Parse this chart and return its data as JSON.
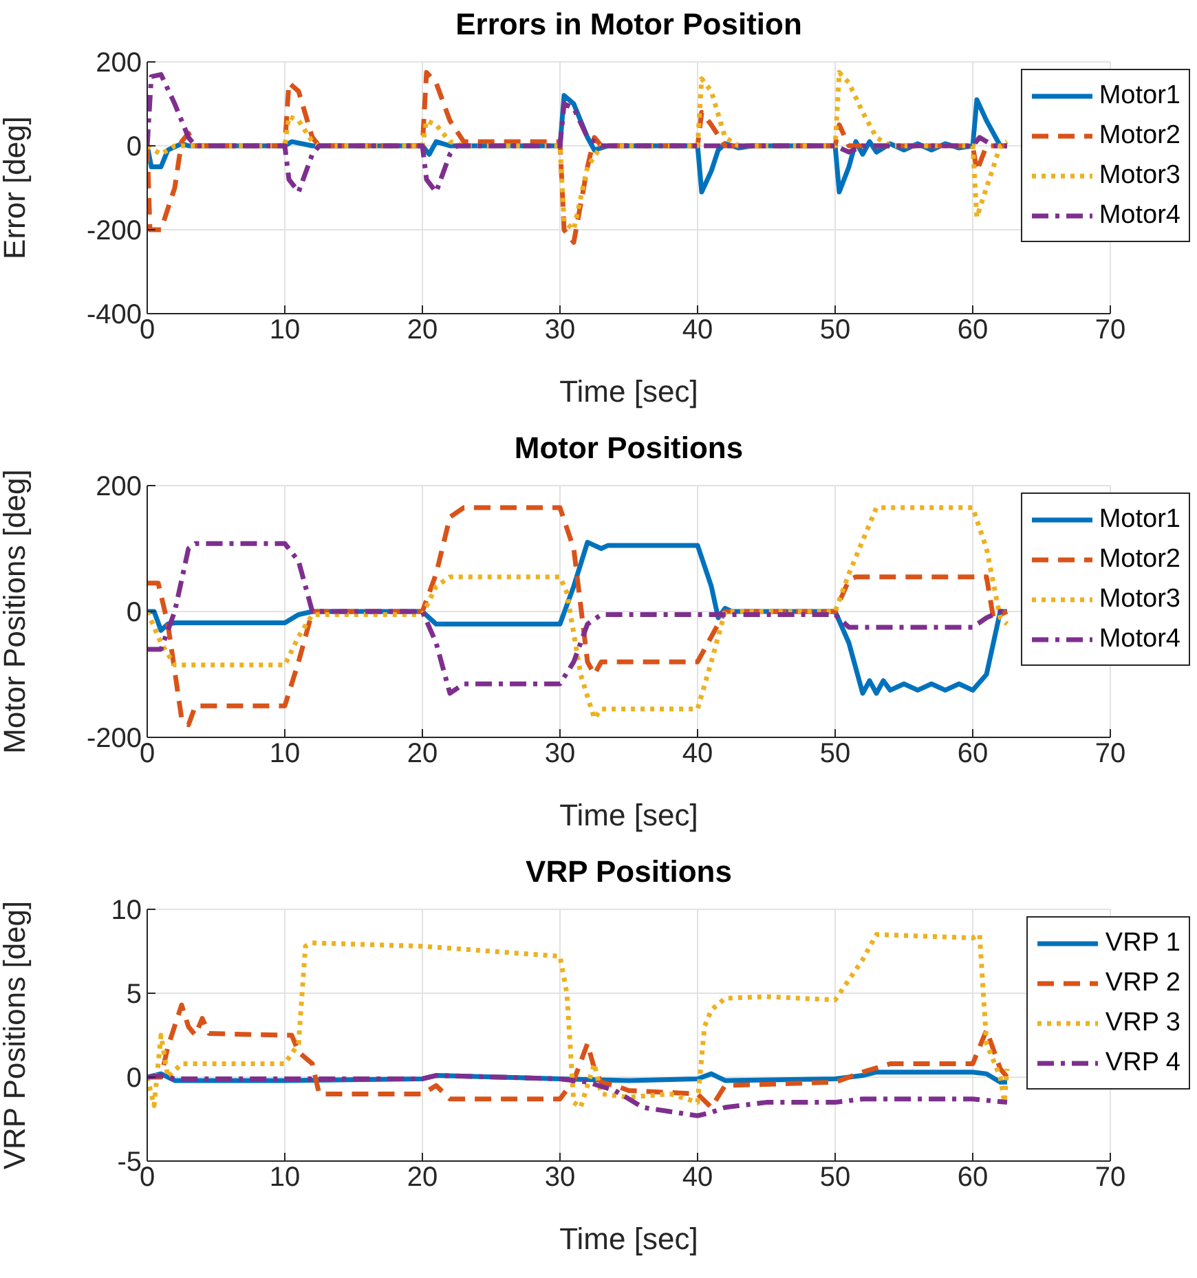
{
  "chart_data": [
    {
      "type": "line",
      "title": "Errors in Motor Position",
      "xlabel": "Time [sec]",
      "ylabel": "Error [deg]",
      "xlim": [
        0,
        70
      ],
      "xticks": [
        0,
        10,
        20,
        30,
        40,
        50,
        60,
        70
      ],
      "ylim": [
        -400,
        200
      ],
      "yticks": [
        -400,
        -200,
        0,
        200
      ],
      "grid": true,
      "legend": "top right",
      "series": [
        {
          "name": "Motor1",
          "color": "#0072bd",
          "line_style": "solid",
          "x": [
            0,
            0.3,
            1,
            1.5,
            2.5,
            3,
            10,
            10.5,
            12,
            20,
            20.5,
            21,
            22,
            30,
            30.3,
            31,
            32,
            32.5,
            33.5,
            40,
            40.3,
            41,
            41.5,
            42,
            43,
            44,
            50,
            50.3,
            51,
            51.5,
            52,
            52.5,
            53,
            54,
            55,
            56,
            57,
            58,
            59,
            60,
            60.3,
            61,
            62,
            62.5
          ],
          "values": [
            0,
            -50,
            -50,
            -10,
            5,
            0,
            0,
            10,
            0,
            0,
            -20,
            10,
            0,
            0,
            120,
            100,
            20,
            -10,
            0,
            0,
            -110,
            -60,
            -10,
            5,
            -5,
            0,
            0,
            -110,
            -50,
            10,
            -20,
            10,
            -15,
            5,
            -10,
            5,
            -10,
            5,
            -5,
            0,
            110,
            60,
            0,
            0
          ]
        },
        {
          "name": "Motor2",
          "color": "#d95319",
          "line_style": "dashed",
          "x": [
            0,
            0.2,
            1,
            2,
            2.5,
            3,
            3.5,
            10,
            10.3,
            11,
            12,
            12.5,
            20,
            20.3,
            21,
            22,
            23,
            24,
            30,
            30.3,
            31,
            32,
            32.5,
            33,
            40,
            40.3,
            41,
            42,
            50,
            50.3,
            51,
            60,
            60.3,
            61,
            62.5
          ],
          "values": [
            0,
            -200,
            -200,
            -100,
            10,
            30,
            0,
            0,
            150,
            130,
            20,
            0,
            0,
            175,
            150,
            60,
            10,
            10,
            10,
            -200,
            -230,
            -50,
            20,
            0,
            0,
            80,
            50,
            0,
            0,
            50,
            0,
            0,
            -60,
            0,
            0
          ]
        },
        {
          "name": "Motor3",
          "color": "#edb120",
          "line_style": "dotted",
          "x": [
            0,
            1,
            2,
            10,
            10.3,
            11,
            12,
            12.5,
            20,
            20.3,
            21,
            22,
            23,
            30,
            30.3,
            31,
            32,
            33,
            40,
            40.3,
            41,
            42,
            43,
            50,
            50.3,
            51,
            52,
            53,
            54,
            60,
            60.3,
            61,
            62,
            62.5
          ],
          "values": [
            0,
            -20,
            0,
            0,
            70,
            60,
            10,
            0,
            0,
            60,
            50,
            10,
            0,
            0,
            -180,
            -200,
            -50,
            0,
            0,
            160,
            130,
            20,
            0,
            0,
            175,
            150,
            80,
            20,
            0,
            0,
            -170,
            -100,
            0,
            10
          ]
        },
        {
          "name": "Motor4",
          "color": "#7e2f8e",
          "line_style": "dashdot",
          "x": [
            0,
            0.3,
            1,
            2,
            3,
            3.5,
            10,
            10.3,
            11,
            12,
            12.5,
            20,
            20.3,
            21,
            22,
            22.5,
            30,
            30.3,
            31,
            32,
            33,
            40,
            50,
            51,
            52,
            60,
            60.5,
            61.5,
            62.5
          ],
          "values": [
            0,
            165,
            170,
            100,
            20,
            0,
            0,
            -80,
            -110,
            -20,
            0,
            0,
            -80,
            -110,
            -20,
            0,
            0,
            100,
            90,
            20,
            0,
            0,
            0,
            -15,
            0,
            0,
            20,
            0,
            0
          ]
        }
      ]
    },
    {
      "type": "line",
      "title": "Motor Positions",
      "xlabel": "Time [sec]",
      "ylabel": "Motor Positions [deg]",
      "xlim": [
        0,
        70
      ],
      "xticks": [
        0,
        10,
        20,
        30,
        40,
        50,
        60,
        70
      ],
      "ylim": [
        -200,
        200
      ],
      "yticks": [
        -200,
        0,
        200
      ],
      "grid": true,
      "legend": "top right",
      "series": [
        {
          "name": "Motor1",
          "color": "#0072bd",
          "line_style": "solid",
          "x": [
            0,
            0.5,
            1,
            1.5,
            2,
            10,
            11,
            12,
            20,
            21,
            22,
            30,
            31,
            32,
            33,
            33.5,
            40,
            41,
            41.5,
            42,
            42.5,
            50,
            51,
            52,
            52.5,
            53,
            53.5,
            54,
            55,
            56,
            57,
            58,
            59,
            60,
            61,
            62,
            62.5
          ],
          "values": [
            0,
            0,
            -30,
            -20,
            -18,
            -18,
            -5,
            0,
            0,
            -20,
            -20,
            -20,
            40,
            110,
            100,
            105,
            105,
            40,
            -10,
            5,
            0,
            0,
            -50,
            -130,
            -110,
            -130,
            -110,
            -125,
            -115,
            -125,
            -115,
            -125,
            -115,
            -125,
            -100,
            0,
            0
          ]
        },
        {
          "name": "Motor2",
          "color": "#d95319",
          "line_style": "dashed",
          "x": [
            0,
            0.8,
            1.5,
            2.5,
            3,
            3.5,
            10,
            11,
            12,
            20,
            21,
            22,
            23,
            30,
            31,
            32,
            32.5,
            33,
            40,
            41,
            42,
            50,
            51,
            51.5,
            60,
            61,
            61.5,
            62.5
          ],
          "values": [
            45,
            45,
            -20,
            -170,
            -180,
            -150,
            -150,
            -80,
            0,
            0,
            60,
            150,
            165,
            165,
            100,
            -80,
            -100,
            -80,
            -80,
            -40,
            0,
            0,
            50,
            55,
            55,
            55,
            -10,
            0
          ]
        },
        {
          "name": "Motor3",
          "color": "#edb120",
          "line_style": "dotted",
          "x": [
            0,
            1,
            2,
            10,
            11,
            12,
            20,
            21,
            22,
            30,
            30.5,
            31.5,
            32.5,
            33,
            40,
            41,
            42,
            50,
            51,
            53,
            60,
            61,
            62,
            62.5
          ],
          "values": [
            0,
            -50,
            -85,
            -85,
            -40,
            -5,
            -5,
            40,
            55,
            55,
            30,
            -100,
            -170,
            -155,
            -155,
            -80,
            0,
            0,
            60,
            165,
            165,
            100,
            -10,
            -20
          ]
        },
        {
          "name": "Motor4",
          "color": "#7e2f8e",
          "line_style": "dashdot",
          "x": [
            0,
            1,
            2,
            3,
            3.5,
            10,
            11,
            12,
            20,
            21,
            22,
            23,
            30,
            31,
            32,
            33,
            40,
            50,
            51,
            60,
            61,
            62,
            62.5
          ],
          "values": [
            -60,
            -60,
            0,
            100,
            108,
            108,
            80,
            0,
            0,
            -50,
            -130,
            -115,
            -115,
            -80,
            -20,
            -5,
            -5,
            -5,
            -25,
            -25,
            -10,
            0,
            0
          ]
        }
      ]
    },
    {
      "type": "line",
      "title": "VRP Positions",
      "xlabel": "Time [sec]",
      "ylabel": "VRP Positions [deg]",
      "xlim": [
        0,
        70
      ],
      "xticks": [
        0,
        10,
        20,
        30,
        40,
        50,
        60,
        70
      ],
      "ylim": [
        -5,
        10
      ],
      "yticks": [
        -5,
        0,
        5,
        10
      ],
      "grid": true,
      "legend": "top right",
      "series": [
        {
          "name": "VRP 1",
          "color": "#0072bd",
          "line_style": "solid",
          "x": [
            0,
            1,
            2,
            10,
            20,
            21,
            30,
            35,
            40,
            41,
            42,
            50,
            52,
            53,
            60,
            61,
            62,
            62.5
          ],
          "values": [
            0,
            0.2,
            -0.2,
            -0.2,
            -0.1,
            0.1,
            -0.1,
            -0.2,
            -0.1,
            0.2,
            -0.2,
            -0.1,
            0.1,
            0.3,
            0.3,
            0.2,
            -0.3,
            -0.3
          ]
        },
        {
          "name": "VRP 2",
          "color": "#d95319",
          "line_style": "dashed",
          "x": [
            0,
            1,
            1.5,
            2.5,
            3,
            3.5,
            4,
            4.5,
            10,
            10.5,
            11,
            12,
            12.5,
            20,
            21,
            22,
            30,
            31,
            32,
            32.5,
            33,
            34,
            35,
            40,
            41,
            42,
            50,
            52,
            54,
            60,
            61,
            62,
            62.5
          ],
          "values": [
            0,
            0,
            1.8,
            4.3,
            3,
            2.5,
            3.5,
            2.6,
            2.5,
            2.5,
            1.5,
            0.8,
            -1,
            -1,
            -0.5,
            -1.3,
            -1.3,
            -0.2,
            2,
            0.5,
            -0.3,
            -0.5,
            -0.8,
            -1,
            -1.8,
            -0.5,
            -0.3,
            0.3,
            0.8,
            0.8,
            2.8,
            0.5,
            0
          ]
        },
        {
          "name": "VRP 3",
          "color": "#edb120",
          "line_style": "dotted",
          "x": [
            0,
            0.5,
            1,
            1.5,
            2.5,
            10,
            11,
            11.5,
            12,
            20,
            25,
            30,
            30.5,
            31,
            31.5,
            32.5,
            33,
            35,
            38,
            40,
            40.5,
            41,
            42,
            45,
            50,
            52,
            53,
            60,
            60.5,
            61,
            62,
            62.3,
            62.5
          ],
          "values": [
            0,
            -1.7,
            2.5,
            0,
            0.8,
            0.8,
            2,
            7.8,
            8,
            7.8,
            7.5,
            7.2,
            5,
            -1.5,
            -1.8,
            0.8,
            -1,
            -1.2,
            -1,
            -1.5,
            3,
            4,
            4.7,
            4.8,
            4.6,
            7,
            8.5,
            8.3,
            8.5,
            2,
            0,
            -1.5,
            0.5
          ]
        },
        {
          "name": "VRP 4",
          "color": "#7e2f8e",
          "line_style": "dashdot",
          "x": [
            0,
            1,
            2,
            10,
            20,
            21,
            30,
            32,
            34,
            36,
            40,
            41,
            42,
            45,
            50,
            52,
            60,
            62.5
          ],
          "values": [
            0,
            0.1,
            -0.1,
            -0.1,
            -0.1,
            0.1,
            -0.1,
            -0.3,
            -0.8,
            -1.8,
            -2.3,
            -2.1,
            -1.8,
            -1.5,
            -1.5,
            -1.3,
            -1.3,
            -1.5
          ]
        }
      ]
    }
  ]
}
